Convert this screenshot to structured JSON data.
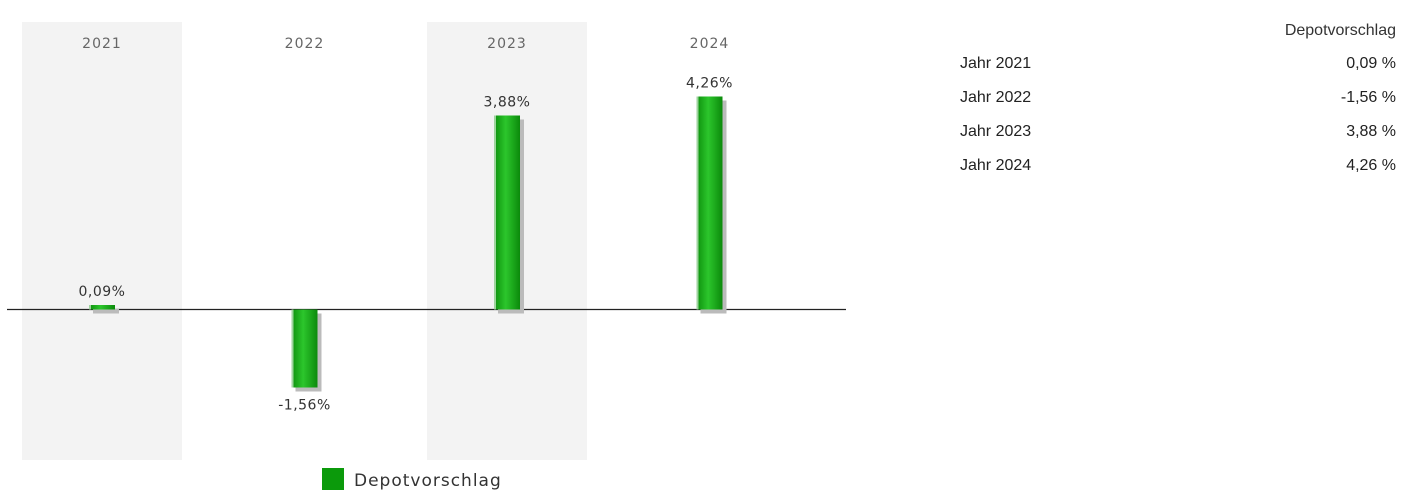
{
  "chart_data": {
    "type": "bar",
    "categories": [
      "2021",
      "2022",
      "2023",
      "2024"
    ],
    "series": [
      {
        "name": "Depotvorschlag",
        "values": [
          0.09,
          -1.56,
          3.88,
          4.26
        ],
        "labels": [
          "0,09%",
          "-1,56%",
          "3,88%",
          "4,26%"
        ]
      }
    ],
    "title": "",
    "xlabel": "",
    "ylabel": "",
    "ylim": [
      -3,
      4.3
    ],
    "grid": false,
    "legend": "bottom-center",
    "colors": {
      "bar": "#0b9a0b",
      "bar_highlight": "#28c828",
      "bar_shadow": "#bbbbbb",
      "band": "#f3f3f3",
      "axis": "#222222"
    }
  },
  "table": {
    "header": "Depotvorschlag",
    "rows": [
      {
        "label": "Jahr 2021",
        "value": "0,09 %"
      },
      {
        "label": "Jahr 2022",
        "value": "-1,56 %"
      },
      {
        "label": "Jahr 2023",
        "value": "3,88 %"
      },
      {
        "label": "Jahr 2024",
        "value": "4,26 %"
      }
    ]
  }
}
